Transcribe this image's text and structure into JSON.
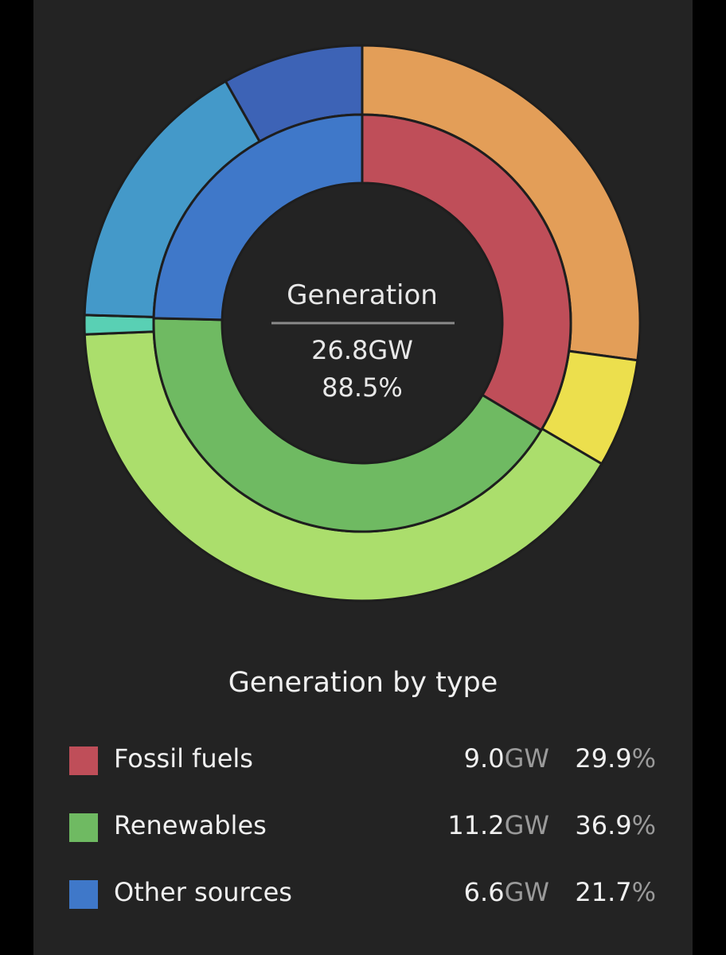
{
  "chart_data": {
    "type": "pie",
    "center": {
      "label": "Generation",
      "value": "26.8GW",
      "percent": "88.5%"
    },
    "inner_ring": {
      "categories": [
        "Fossil fuels",
        "Renewables",
        "Other sources"
      ],
      "values": [
        9.0,
        11.2,
        6.6
      ],
      "colors": [
        "#bf4e59",
        "#6fba62",
        "#3f78c9"
      ]
    },
    "outer_ring": {
      "values": [
        7.3,
        1.7,
        11.0,
        0.3,
        4.4,
        2.2
      ],
      "colors": [
        "#e39e58",
        "#ecdf4d",
        "#abde6c",
        "#59d0b4",
        "#4499c9",
        "#3d63b6"
      ]
    },
    "legend_title": "Generation by type",
    "legend": [
      {
        "label": "Fossil fuels",
        "value": "9.0",
        "unit": "GW",
        "percent": "29.9",
        "pct_sign": "%",
        "color": "#bf4e59"
      },
      {
        "label": "Renewables",
        "value": "11.2",
        "unit": "GW",
        "percent": "36.9",
        "pct_sign": "%",
        "color": "#6fba62"
      },
      {
        "label": "Other sources",
        "value": "6.6",
        "unit": "GW",
        "percent": "21.7",
        "pct_sign": "%",
        "color": "#3f78c9"
      }
    ]
  }
}
